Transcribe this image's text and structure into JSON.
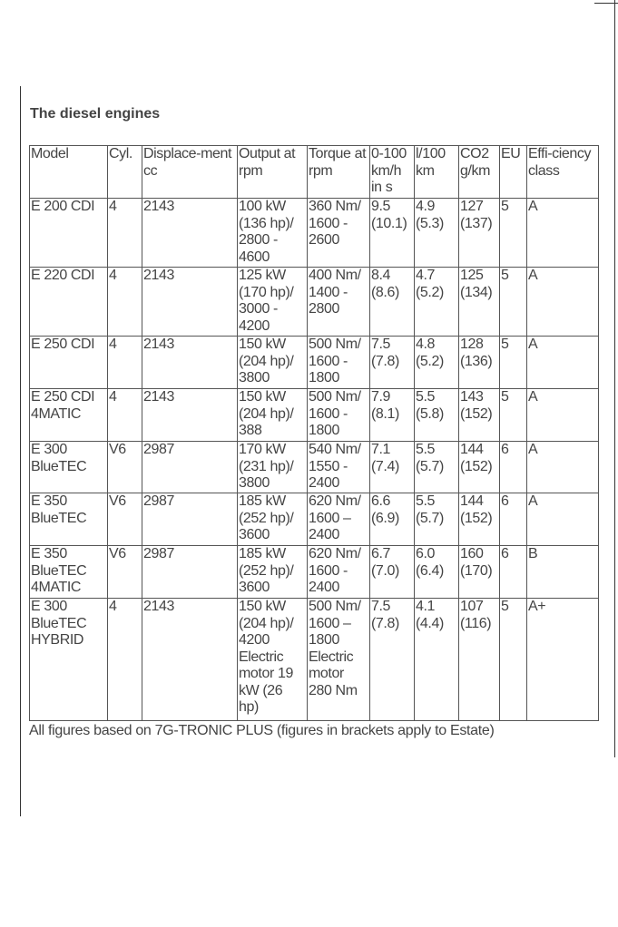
{
  "title": "The diesel engines",
  "headers": [
    "Model",
    "Cyl.",
    "Displace-ment cc",
    "Output at rpm",
    "Torque at rpm",
    "0-100 km/h in s",
    "l/100 km",
    "CO2 g/km",
    "EU",
    "Effi-ciency class"
  ],
  "rows": [
    [
      "E 200 CDI",
      "4",
      "2143",
      "100 kW (136 hp)/ 2800 - 4600",
      "360 Nm/ 1600 - 2600",
      "9.5 (10.1)",
      "4.9 (5.3)",
      "127 (137)",
      "5",
      "A"
    ],
    [
      "E 220 CDI",
      "4",
      "2143",
      "125 kW (170 hp)/ 3000 - 4200",
      "400 Nm/ 1400 - 2800",
      "8.4 (8.6)",
      "4.7 (5.2)",
      "125 (134)",
      "5",
      "A"
    ],
    [
      "E 250 CDI",
      "4",
      "2143",
      "150 kW (204 hp)/ 3800",
      "500 Nm/ 1600 - 1800",
      "7.5 (7.8)",
      "4.8 (5.2)",
      "128 (136)",
      "5",
      "A"
    ],
    [
      "E 250 CDI 4MATIC",
      "4",
      "2143",
      "150 kW (204 hp)/ 388",
      "500 Nm/ 1600 - 1800",
      "7.9 (8.1)",
      "5.5 (5.8)",
      "143 (152)",
      "5",
      "A"
    ],
    [
      "E 300 BlueTEC",
      "V6",
      "2987",
      "170 kW (231 hp)/ 3800",
      "540 Nm/ 1550 - 2400",
      "7.1 (7.4)",
      "5.5 (5.7)",
      "144 (152)",
      "6",
      "A"
    ],
    [
      "E 350 BlueTEC",
      "V6",
      "2987",
      "185 kW (252 hp)/ 3600",
      "620 Nm/ 1600 – 2400",
      "6.6 (6.9)",
      "5.5 (5.7)",
      "144 (152)",
      "6",
      "A"
    ],
    [
      "E 350 BlueTEC 4MATIC",
      "V6",
      "2987",
      "185 kW (252 hp)/ 3600",
      "620 Nm/ 1600 - 2400",
      "6.7 (7.0)",
      "6.0 (6.4)",
      "160 (170)",
      "6",
      "B"
    ],
    [
      "E 300 BlueTEC HYBRID",
      "4",
      "2143",
      "150 kW (204 hp)/ 4200 Electric motor 19 kW (26 hp)",
      "500 Nm/ 1600 – 1800 Electric motor 280 Nm",
      "7.5 (7.8)",
      "4.1 (4.4)",
      "107 (116)",
      "5",
      "A+"
    ]
  ],
  "footnote": "All figures based on 7G-TRONIC PLUS (figures in brackets apply to Estate)"
}
